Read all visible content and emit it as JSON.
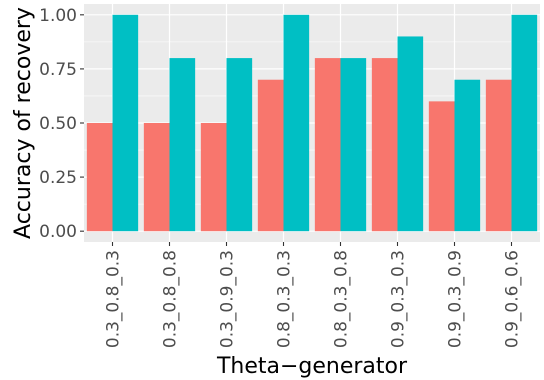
{
  "chart_data": {
    "type": "bar",
    "title": "",
    "xlabel": "Theta−generator",
    "ylabel": "Accuracy of recovery",
    "categories": [
      "0.3_0.8_0.3",
      "0.3_0.8_0.8",
      "0.3_0.9_0.3",
      "0.8_0.3_0.3",
      "0.8_0.3_0.8",
      "0.9_0.3_0.3",
      "0.9_0.3_0.9",
      "0.9_0.6_0.6"
    ],
    "series": [
      {
        "values": [
          0.5,
          0.5,
          0.5,
          0.7,
          0.8,
          0.8,
          0.6,
          0.7
        ],
        "color": "#F8766D"
      },
      {
        "values": [
          1.0,
          0.8,
          0.8,
          1.0,
          0.8,
          0.9,
          0.7,
          1.0
        ],
        "color": "#00BFC4"
      }
    ],
    "ylim": [
      0,
      1.0
    ],
    "yticks": [
      0.0,
      0.25,
      0.5,
      0.75,
      1.0
    ],
    "ytick_labels": [
      "0.00",
      "0.25",
      "0.50",
      "0.75",
      "1.00"
    ],
    "grid": true,
    "legend": "none",
    "panel_background": "#EBEBEB",
    "grid_color": "#FFFFFF"
  }
}
